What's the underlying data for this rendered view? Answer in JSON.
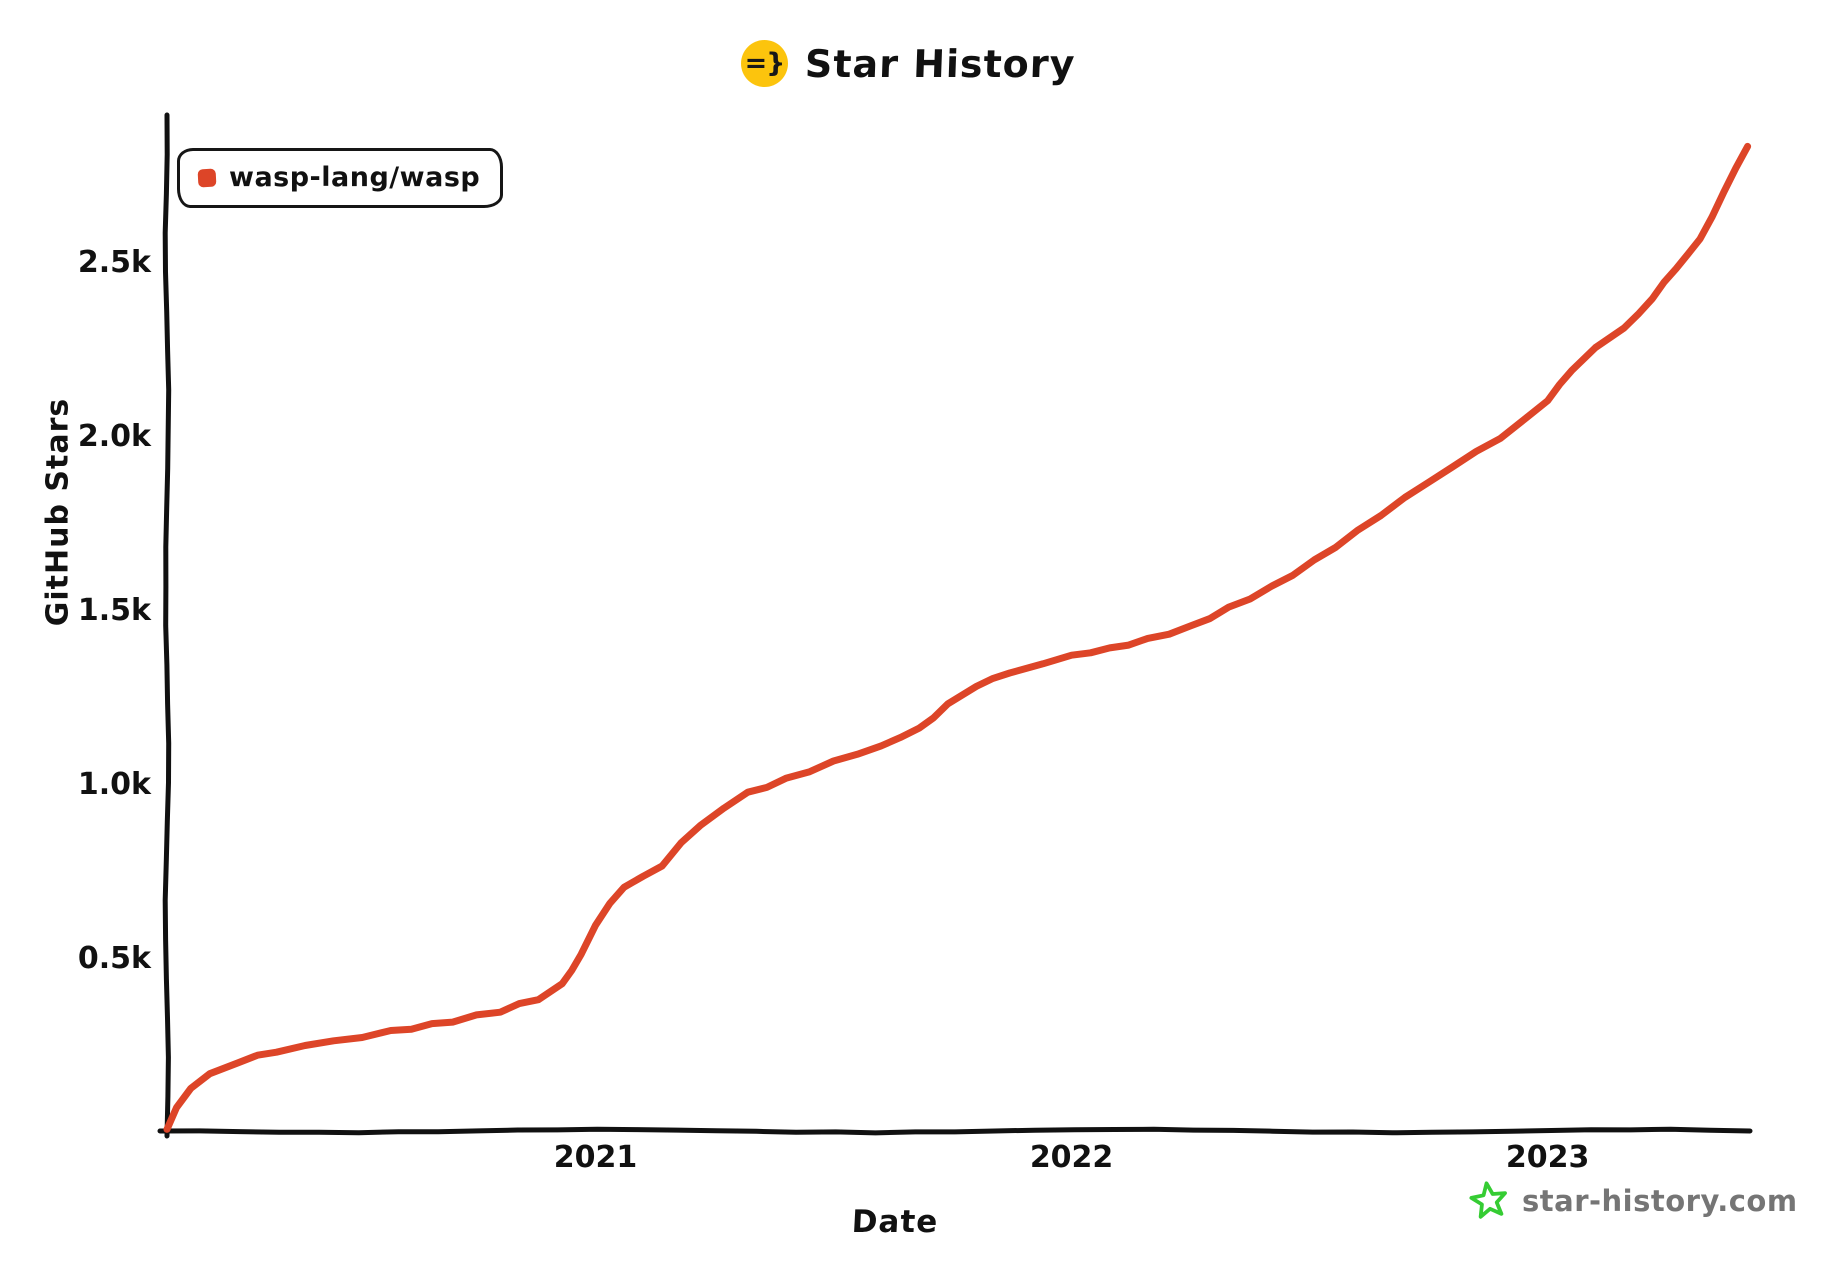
{
  "header": {
    "title": "Star History",
    "logo_icon": "wasp-logo-icon",
    "logo_text": "=}",
    "logo_bg": "#fcc40d"
  },
  "legend": {
    "items": [
      {
        "label": "wasp-lang/wasp",
        "color": "#dd4528"
      }
    ]
  },
  "watermark": {
    "text": "star-history.com",
    "icon": "star-icon",
    "icon_color": "#35cc33",
    "text_color": "#757575"
  },
  "chart_data": {
    "type": "line",
    "title": "Star History",
    "xlabel": "Date",
    "ylabel": "GitHub Stars",
    "grid": false,
    "legend_position": "top-left",
    "x_range": [
      2020.1,
      2023.425
    ],
    "y_range": [
      0,
      2900
    ],
    "x_ticks": [
      {
        "label": "2021",
        "value": 2021
      },
      {
        "label": "2022",
        "value": 2022
      },
      {
        "label": "2023",
        "value": 2023
      }
    ],
    "y_ticks": [
      {
        "label": "0.5k",
        "value": 500
      },
      {
        "label": "1.0k",
        "value": 1000
      },
      {
        "label": "1.5k",
        "value": 1500
      },
      {
        "label": "2.0k",
        "value": 2000
      },
      {
        "label": "2.5k",
        "value": 2500
      }
    ],
    "series": [
      {
        "name": "wasp-lang/wasp",
        "color": "#dd4528",
        "points": [
          [
            2020.1,
            5
          ],
          [
            2020.12,
            70
          ],
          [
            2020.15,
            120
          ],
          [
            2020.19,
            165
          ],
          [
            2020.25,
            200
          ],
          [
            2020.33,
            230
          ],
          [
            2020.45,
            260
          ],
          [
            2020.57,
            285
          ],
          [
            2020.7,
            315
          ],
          [
            2020.8,
            345
          ],
          [
            2020.88,
            380
          ],
          [
            2020.93,
            420
          ],
          [
            2020.97,
            510
          ],
          [
            2021.0,
            590
          ],
          [
            2021.03,
            655
          ],
          [
            2021.06,
            700
          ],
          [
            2021.1,
            730
          ],
          [
            2021.14,
            765
          ],
          [
            2021.18,
            825
          ],
          [
            2021.22,
            880
          ],
          [
            2021.27,
            930
          ],
          [
            2021.32,
            970
          ],
          [
            2021.4,
            1010
          ],
          [
            2021.5,
            1060
          ],
          [
            2021.6,
            1105
          ],
          [
            2021.68,
            1155
          ],
          [
            2021.74,
            1225
          ],
          [
            2021.8,
            1280
          ],
          [
            2021.87,
            1320
          ],
          [
            2021.94,
            1345
          ],
          [
            2022.0,
            1365
          ],
          [
            2022.08,
            1385
          ],
          [
            2022.16,
            1412
          ],
          [
            2022.25,
            1448
          ],
          [
            2022.33,
            1502
          ],
          [
            2022.42,
            1562
          ],
          [
            2022.51,
            1638
          ],
          [
            2022.6,
            1722
          ],
          [
            2022.7,
            1818
          ],
          [
            2022.8,
            1908
          ],
          [
            2022.9,
            1992
          ],
          [
            2022.96,
            2052
          ],
          [
            2023.0,
            2100
          ],
          [
            2023.05,
            2188
          ],
          [
            2023.1,
            2248
          ],
          [
            2023.16,
            2305
          ],
          [
            2023.22,
            2395
          ],
          [
            2023.27,
            2480
          ],
          [
            2023.32,
            2560
          ],
          [
            2023.37,
            2700
          ],
          [
            2023.42,
            2830
          ]
        ]
      }
    ]
  }
}
